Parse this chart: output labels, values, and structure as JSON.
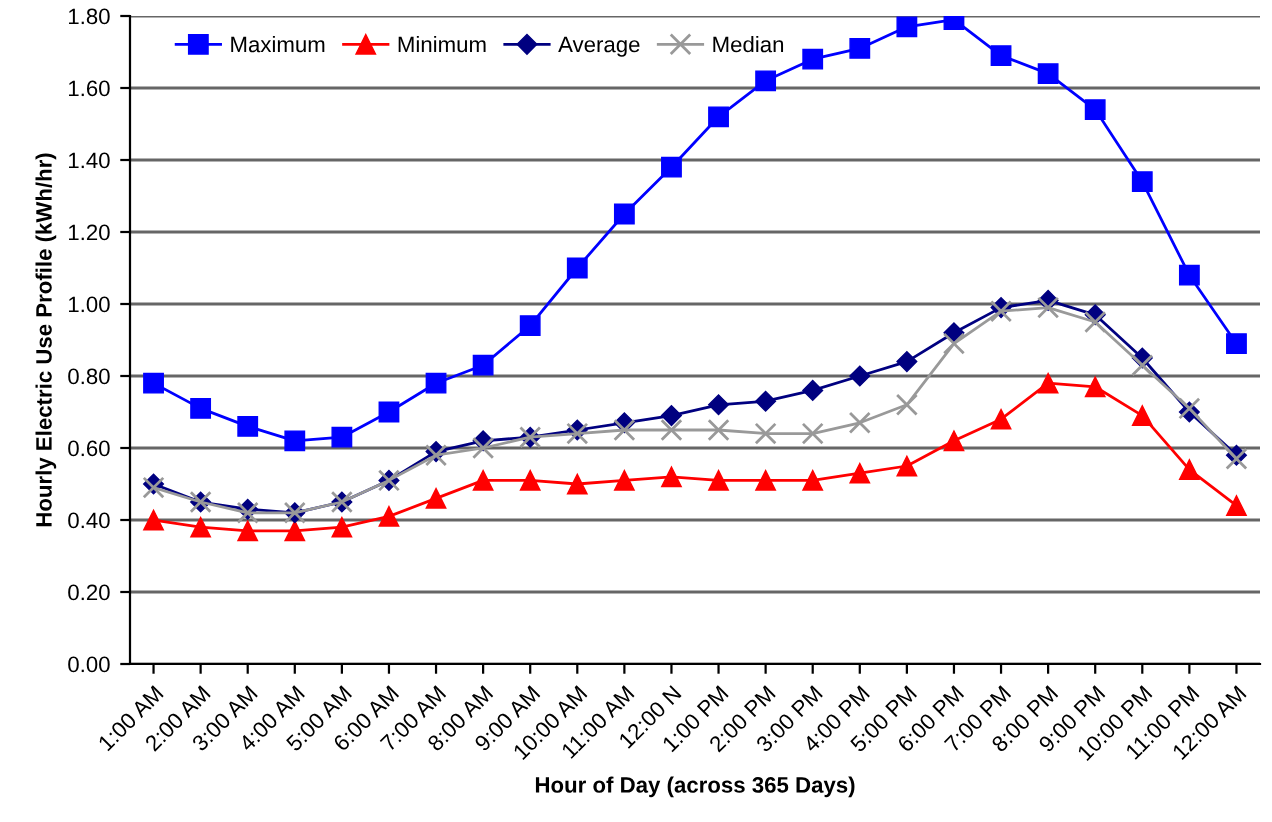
{
  "chart_data": {
    "type": "line",
    "xlabel": "Hour of Day (across 365 Days)",
    "ylabel": "Hourly Electric Use Profile (kWh/hr)",
    "categories": [
      "1:00 AM",
      "2:00 AM",
      "3:00 AM",
      "4:00 AM",
      "5:00 AM",
      "6:00 AM",
      "7:00 AM",
      "8:00 AM",
      "9:00 AM",
      "10:00 AM",
      "11:00 AM",
      "12:00 N",
      "1:00 PM",
      "2:00 PM",
      "3:00 PM",
      "4:00 PM",
      "5:00 PM",
      "6:00 PM",
      "7:00 PM",
      "8:00 PM",
      "9:00 PM",
      "10:00 PM",
      "11:00 PM",
      "12:00 AM"
    ],
    "series": [
      {
        "name": "Maximum",
        "color": "#0000ff",
        "marker": "square",
        "values": [
          0.78,
          0.71,
          0.66,
          0.62,
          0.63,
          0.7,
          0.78,
          0.83,
          0.94,
          1.1,
          1.25,
          1.38,
          1.52,
          1.62,
          1.68,
          1.71,
          1.77,
          1.79,
          1.69,
          1.64,
          1.54,
          1.34,
          1.08,
          0.89
        ]
      },
      {
        "name": "Minimum",
        "color": "#ff0000",
        "marker": "triangle",
        "values": [
          0.4,
          0.38,
          0.37,
          0.37,
          0.38,
          0.41,
          0.46,
          0.51,
          0.51,
          0.5,
          0.51,
          0.52,
          0.51,
          0.51,
          0.51,
          0.53,
          0.55,
          0.62,
          0.68,
          0.78,
          0.77,
          0.69,
          0.54,
          0.44
        ]
      },
      {
        "name": "Average",
        "color": "#000080",
        "marker": "diamond",
        "values": [
          0.5,
          0.45,
          0.43,
          0.42,
          0.45,
          0.51,
          0.59,
          0.62,
          0.63,
          0.65,
          0.67,
          0.69,
          0.72,
          0.73,
          0.76,
          0.8,
          0.84,
          0.92,
          0.99,
          1.01,
          0.97,
          0.85,
          0.7,
          0.58
        ]
      },
      {
        "name": "Median",
        "color": "#999999",
        "marker": "cross",
        "values": [
          0.49,
          0.45,
          0.42,
          0.42,
          0.45,
          0.51,
          0.58,
          0.6,
          0.63,
          0.64,
          0.65,
          0.65,
          0.65,
          0.64,
          0.64,
          0.67,
          0.72,
          0.89,
          0.98,
          0.99,
          0.95,
          0.83,
          0.71,
          0.57
        ]
      }
    ],
    "ylim": [
      0,
      1.8
    ],
    "yticks": [
      {
        "value": 0,
        "label": "0.00"
      },
      {
        "value": 0.2,
        "label": "0.20"
      },
      {
        "value": 0.4,
        "label": "0.40"
      },
      {
        "value": 0.6,
        "label": "0.60"
      },
      {
        "value": 0.8,
        "label": "0.80"
      },
      {
        "value": 1.0,
        "label": "1.00"
      },
      {
        "value": 1.2,
        "label": "1.20"
      },
      {
        "value": 1.4,
        "label": "1.40"
      },
      {
        "value": 1.6,
        "label": "1.60"
      },
      {
        "value": 1.8,
        "label": "1.80"
      }
    ],
    "grid": "y",
    "legend": "top",
    "line_style": "solid"
  }
}
